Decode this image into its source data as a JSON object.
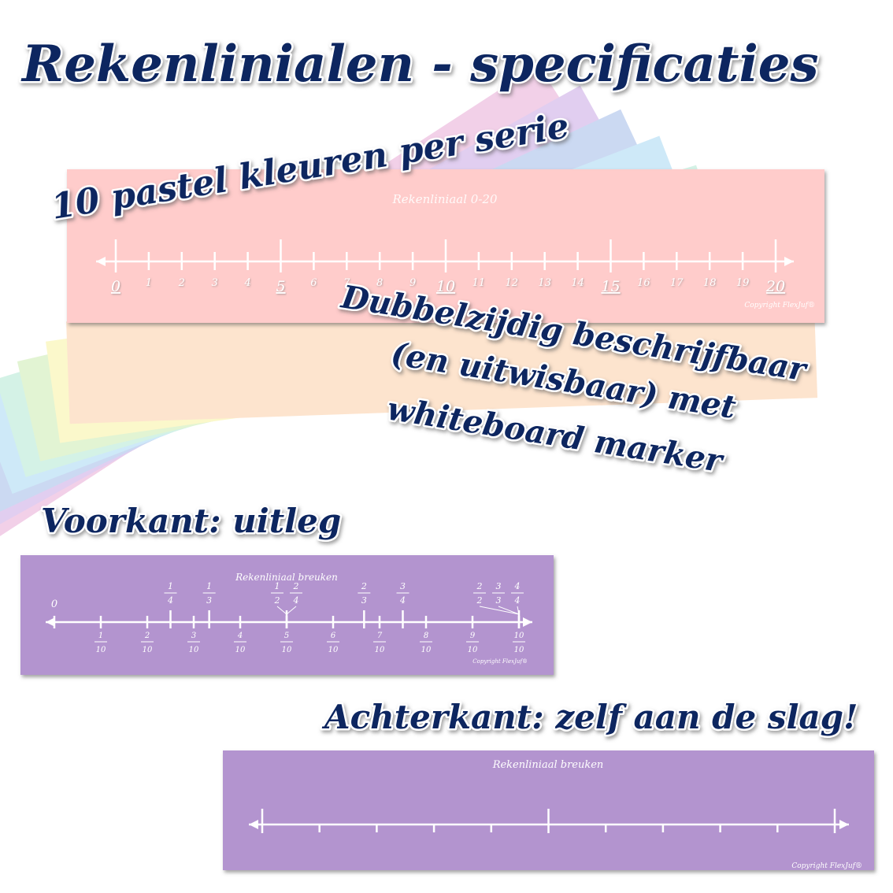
{
  "title": "Rekenlinialen - specificaties",
  "callouts": {
    "colors": "10 pastel kleuren per serie",
    "double_sided": [
      "Dubbelzijdig beschrijfbaar",
      "(en uitwisbaar) met",
      "whiteboard marker"
    ],
    "front": "Voorkant: uitleg",
    "back": "Achterkant: zelf aan de slag!"
  },
  "ruler_0_20": {
    "title": "Rekenliniaal 0-20",
    "labels": [
      0,
      1,
      2,
      3,
      4,
      5,
      6,
      7,
      8,
      9,
      10,
      11,
      12,
      13,
      14,
      15,
      16,
      17,
      18,
      19,
      20
    ],
    "copyright": "Copyright FlexJuf®"
  },
  "ruler_front": {
    "title": "Rekenliniaal breuken",
    "zero": 0,
    "top_fractions": [
      {
        "num": 1,
        "den": 4
      },
      {
        "num": 1,
        "den": 3
      },
      {
        "num": 1,
        "den": 2
      },
      {
        "num": 2,
        "den": 4
      },
      {
        "num": 2,
        "den": 3
      },
      {
        "num": 3,
        "den": 4
      },
      {
        "num": 2,
        "den": 2
      },
      {
        "num": 3,
        "den": 3
      },
      {
        "num": 4,
        "den": 4
      }
    ],
    "bottom_fractions": [
      {
        "num": 1,
        "den": 10
      },
      {
        "num": 2,
        "den": 10
      },
      {
        "num": 3,
        "den": 10
      },
      {
        "num": 4,
        "den": 10
      },
      {
        "num": 5,
        "den": 10
      },
      {
        "num": 6,
        "den": 10
      },
      {
        "num": 7,
        "den": 10
      },
      {
        "num": 8,
        "den": 10
      },
      {
        "num": 9,
        "den": 10
      },
      {
        "num": 10,
        "den": 10
      }
    ],
    "copyright": "Copyright FlexJuf®"
  },
  "ruler_back": {
    "title": "Rekenliniaal breuken",
    "copyright": "Copyright FlexJuf®"
  }
}
